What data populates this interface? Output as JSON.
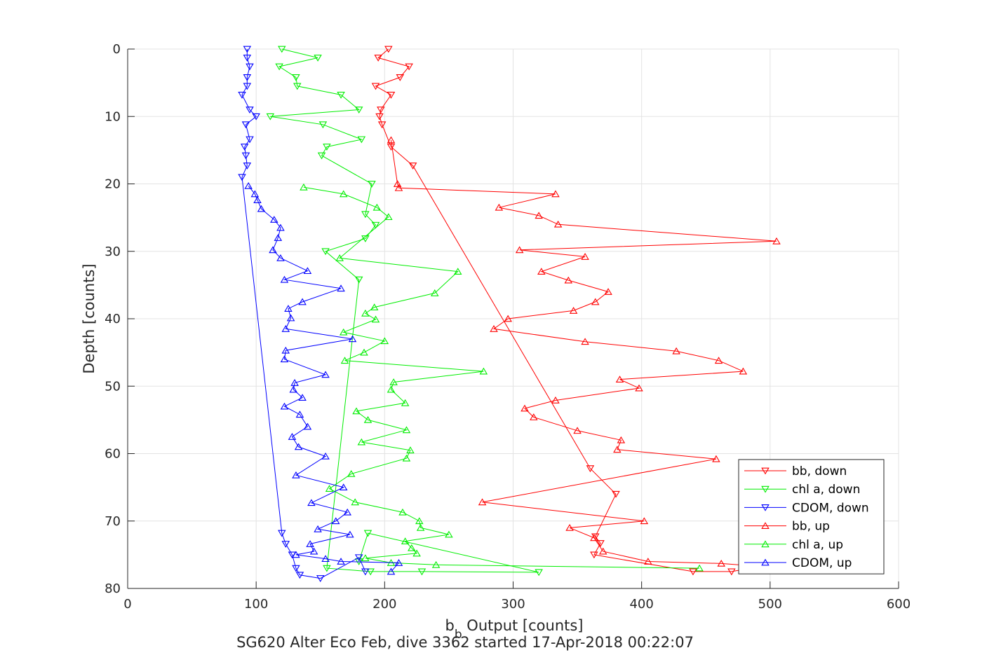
{
  "chart_data": {
    "type": "line",
    "title": "SG620 Alter Eco Feb, dive 3362 started 17-Apr-2018 00:22:07",
    "xlabel_main": "b",
    "xlabel_sub": "b",
    "xlabel_rest": " Output [counts]",
    "ylabel": "Depth [counts]",
    "xlim": [
      0,
      600
    ],
    "ylim": [
      80,
      0
    ],
    "y_reversed": true,
    "xticks": [
      0,
      100,
      200,
      300,
      400,
      500,
      600
    ],
    "yticks": [
      0,
      10,
      20,
      30,
      40,
      50,
      60,
      70,
      80
    ],
    "grid": true,
    "legend_position": "bottom-right",
    "series": [
      {
        "name": "bb, down",
        "color": "#ff0000",
        "marker": "triangle-down",
        "points": [
          [
            203,
            0
          ],
          [
            195,
            1.3
          ],
          [
            219,
            2.6
          ],
          [
            212,
            4.2
          ],
          [
            193,
            5.5
          ],
          [
            205,
            6.8
          ],
          [
            197,
            9
          ],
          [
            196,
            10
          ],
          [
            198,
            11.2
          ],
          [
            205,
            14.5
          ],
          [
            222,
            17.3
          ],
          [
            360,
            62.2
          ],
          [
            380,
            66
          ],
          [
            364,
            72.3
          ],
          [
            368,
            73.3
          ],
          [
            363,
            75
          ],
          [
            440,
            77.5
          ],
          [
            470,
            77.5
          ],
          [
            485,
            77
          ]
        ]
      },
      {
        "name": "chl a, down",
        "color": "#00ee00",
        "marker": "triangle-down",
        "points": [
          [
            120,
            0
          ],
          [
            148,
            1.3
          ],
          [
            118,
            2.6
          ],
          [
            131,
            4.2
          ],
          [
            132,
            5.5
          ],
          [
            166,
            6.8
          ],
          [
            180,
            9
          ],
          [
            111,
            10
          ],
          [
            152,
            11.2
          ],
          [
            182,
            13.4
          ],
          [
            155,
            14.5
          ],
          [
            151,
            15.8
          ],
          [
            190,
            20
          ],
          [
            185,
            24.5
          ],
          [
            193,
            26.1
          ],
          [
            185,
            28.1
          ],
          [
            154,
            30
          ],
          [
            180,
            34.2
          ],
          [
            155,
            77
          ],
          [
            189,
            77.5
          ],
          [
            229,
            77.5
          ],
          [
            320,
            77.6
          ],
          [
            187,
            71.8
          ],
          [
            180,
            76
          ]
        ]
      },
      {
        "name": "CDOM, down",
        "color": "#0000ff",
        "marker": "triangle-down",
        "points": [
          [
            93,
            0
          ],
          [
            93,
            1.3
          ],
          [
            95,
            2.6
          ],
          [
            93,
            4.2
          ],
          [
            93,
            5.5
          ],
          [
            89,
            6.8
          ],
          [
            95,
            9
          ],
          [
            100,
            10
          ],
          [
            92,
            11.2
          ],
          [
            95,
            13.4
          ],
          [
            91,
            14.5
          ],
          [
            92,
            15.8
          ],
          [
            93,
            17.3
          ],
          [
            89,
            19
          ],
          [
            120,
            71.8
          ],
          [
            123,
            73.4
          ],
          [
            128,
            75
          ],
          [
            131,
            77
          ],
          [
            134,
            78
          ],
          [
            150,
            78.5
          ],
          [
            180,
            75.4
          ],
          [
            185,
            77.5
          ]
        ]
      },
      {
        "name": "bb, up",
        "color": "#ff0000",
        "marker": "triangle-up",
        "points": [
          [
            205,
            13.5
          ],
          [
            210,
            20
          ],
          [
            211,
            20.6
          ],
          [
            333,
            21.5
          ],
          [
            289,
            23.5
          ],
          [
            320,
            24.7
          ],
          [
            335,
            26
          ],
          [
            505,
            28.5
          ],
          [
            305,
            29.8
          ],
          [
            356,
            30.8
          ],
          [
            322,
            33
          ],
          [
            343,
            34.3
          ],
          [
            374,
            36
          ],
          [
            364,
            37.5
          ],
          [
            347,
            38.8
          ],
          [
            296,
            40
          ],
          [
            285,
            41.5
          ],
          [
            356,
            43.4
          ],
          [
            427,
            44.8
          ],
          [
            460,
            46.2
          ],
          [
            479,
            47.8
          ],
          [
            383,
            49
          ],
          [
            398,
            50.3
          ],
          [
            333,
            52.1
          ],
          [
            309,
            53.3
          ],
          [
            316,
            54.6
          ],
          [
            350,
            56.6
          ],
          [
            384,
            58
          ],
          [
            381,
            59.4
          ],
          [
            458,
            60.8
          ],
          [
            276,
            67.2
          ],
          [
            402,
            70
          ],
          [
            344,
            71
          ],
          [
            363,
            72.5
          ],
          [
            370,
            74.5
          ],
          [
            405,
            76
          ],
          [
            462,
            76.3
          ],
          [
            490,
            76.7
          ]
        ]
      },
      {
        "name": "chl a, up",
        "color": "#00ee00",
        "marker": "triangle-up",
        "points": [
          [
            137,
            20.5
          ],
          [
            168,
            21.5
          ],
          [
            194,
            23.5
          ],
          [
            203,
            24.9
          ],
          [
            165,
            31
          ],
          [
            257,
            33
          ],
          [
            239,
            36.2
          ],
          [
            192,
            38.3
          ],
          [
            185,
            39.2
          ],
          [
            193,
            40.1
          ],
          [
            168,
            42
          ],
          [
            200,
            43.3
          ],
          [
            184,
            45
          ],
          [
            169,
            46.2
          ],
          [
            277,
            47.8
          ],
          [
            207,
            49.4
          ],
          [
            205,
            50.5
          ],
          [
            216,
            52.5
          ],
          [
            178,
            53.7
          ],
          [
            187,
            55
          ],
          [
            217,
            56.5
          ],
          [
            182,
            58.3
          ],
          [
            220,
            59.5
          ],
          [
            217,
            60.7
          ],
          [
            174,
            63
          ],
          [
            157,
            65.2
          ],
          [
            177,
            67.2
          ],
          [
            214,
            68.7
          ],
          [
            227,
            70
          ],
          [
            228,
            71
          ],
          [
            250,
            72
          ],
          [
            216,
            73
          ],
          [
            221,
            74
          ],
          [
            225,
            74.8
          ],
          [
            185,
            75.5
          ],
          [
            205,
            76.2
          ],
          [
            240,
            76.5
          ],
          [
            445,
            77
          ]
        ]
      },
      {
        "name": "CDOM, up",
        "color": "#0000ff",
        "marker": "triangle-up",
        "points": [
          [
            94,
            20.3
          ],
          [
            99,
            21.5
          ],
          [
            101,
            22.4
          ],
          [
            104,
            23.7
          ],
          [
            114,
            25.3
          ],
          [
            119,
            26.5
          ],
          [
            117,
            28
          ],
          [
            113,
            29.8
          ],
          [
            119,
            31
          ],
          [
            140,
            32.9
          ],
          [
            122,
            34.2
          ],
          [
            166,
            35.5
          ],
          [
            136,
            37.5
          ],
          [
            125,
            38.5
          ],
          [
            127,
            39.9
          ],
          [
            123,
            41.5
          ],
          [
            175,
            43
          ],
          [
            123,
            44.7
          ],
          [
            122,
            46
          ],
          [
            154,
            48.3
          ],
          [
            130,
            49.5
          ],
          [
            129,
            50.5
          ],
          [
            136,
            51.7
          ],
          [
            122,
            53
          ],
          [
            134,
            54.2
          ],
          [
            140,
            56
          ],
          [
            128,
            57.5
          ],
          [
            133,
            59
          ],
          [
            154,
            60.4
          ],
          [
            131,
            63.2
          ],
          [
            168,
            65
          ],
          [
            143,
            67.3
          ],
          [
            171,
            68.7
          ],
          [
            162,
            70
          ],
          [
            148,
            71.2
          ],
          [
            173,
            72
          ],
          [
            142,
            73.4
          ],
          [
            145,
            74.5
          ],
          [
            131,
            75
          ],
          [
            154,
            75.6
          ],
          [
            166,
            76
          ],
          [
            211,
            76.2
          ],
          [
            205,
            77.5
          ]
        ]
      }
    ]
  }
}
